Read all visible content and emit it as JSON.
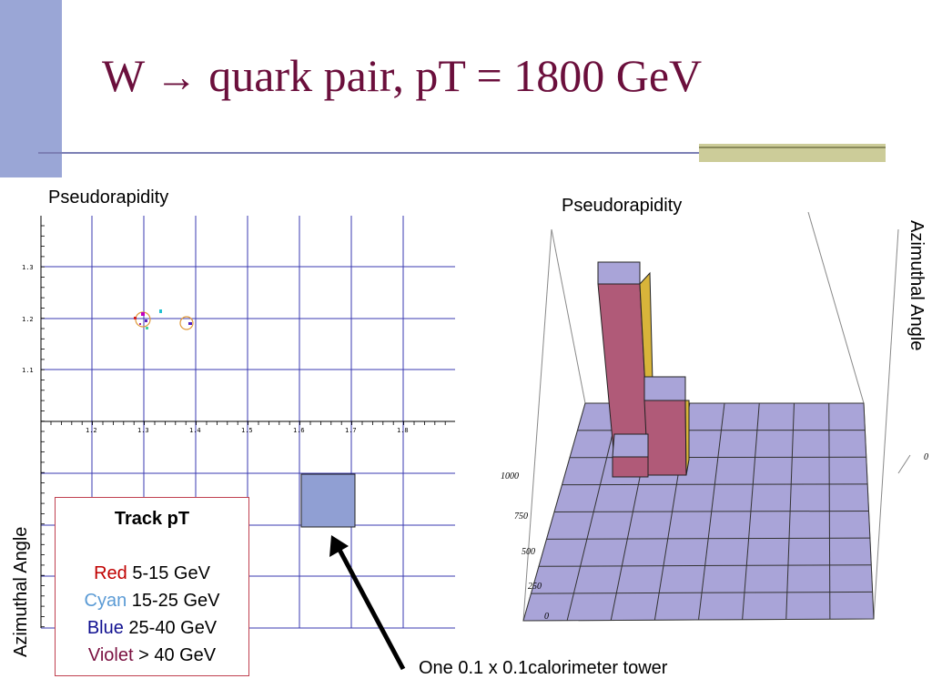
{
  "slide": {
    "title_prefix": "W",
    "title_arrow": "→",
    "title_rest": "quark pair, pT = 1800 GeV"
  },
  "left_plot": {
    "xlabel": "Pseudorapidity",
    "ylabel": "Azimuthal Angle",
    "x_ticks": [
      "1.2",
      "1.3",
      "1.4",
      "1.5",
      "1.6",
      "1.7",
      "1.8"
    ],
    "y_ticks": [
      "1.3",
      "1.2",
      "1.1"
    ]
  },
  "legend": {
    "title": "Track pT",
    "items": [
      {
        "color_word": "Red",
        "range": "5-15 GeV",
        "color": "#c00000"
      },
      {
        "color_word": "Cyan",
        "range": "15-25 GeV",
        "color": "#5b9bd5"
      },
      {
        "color_word": "Blue",
        "range": "25-40 GeV",
        "color": "#101090"
      },
      {
        "color_word": "Violet",
        "range": "> 40 GeV",
        "color": "#7a1040"
      }
    ]
  },
  "annotation": {
    "text": "One 0.1 x 0.1calorimeter tower"
  },
  "right_plot": {
    "xlabel": "Pseudorapidity",
    "ylabel": "Azimuthal Angle",
    "z_ticks": [
      "1000",
      "750",
      "500",
      "250",
      "0"
    ],
    "side_tick": "0"
  },
  "colors": {
    "accent_bar": "#9aa6d6",
    "title": "#6b0f3c",
    "grid": "#3a3ab0",
    "floor": "#a9a4d8",
    "tower_side": "#b05a78",
    "tower_top": "#a9a4d8"
  }
}
